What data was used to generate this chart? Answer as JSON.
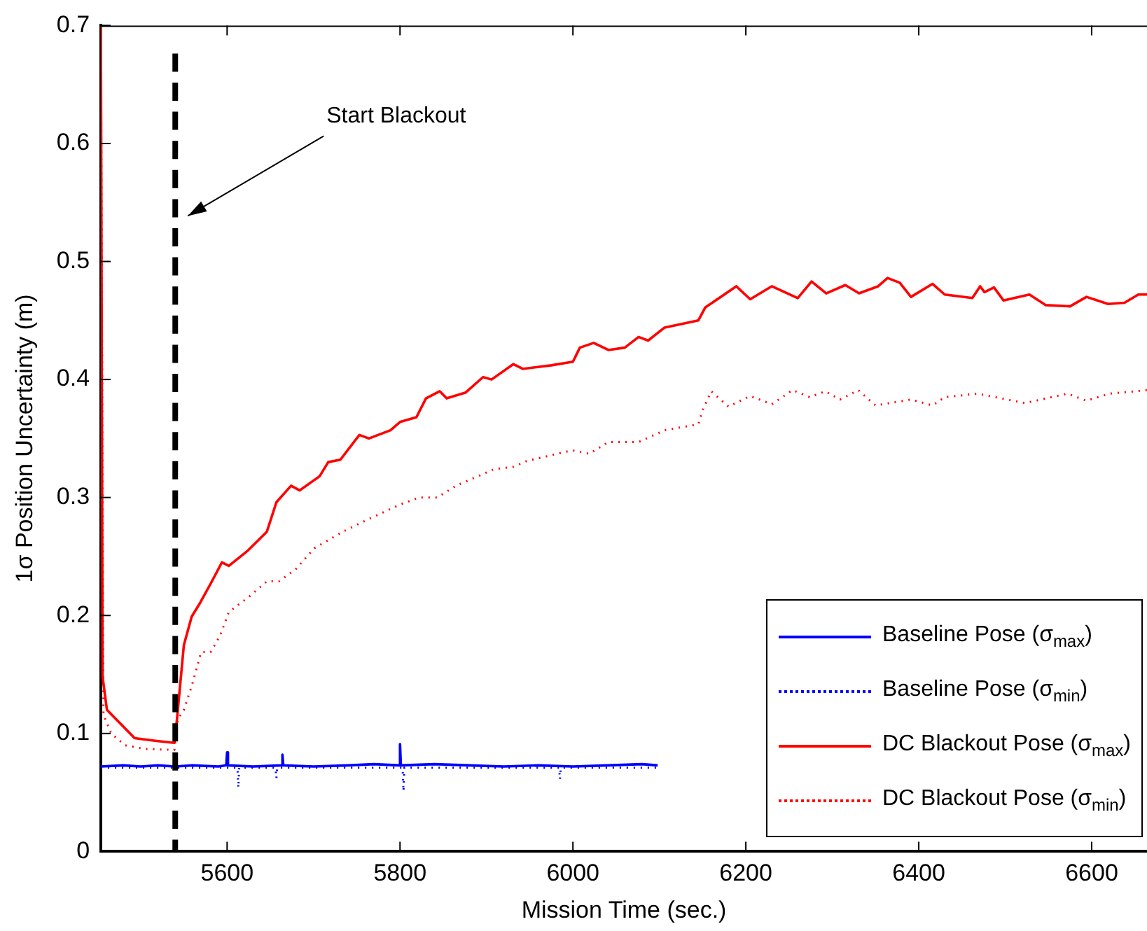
{
  "chart_data": {
    "type": "line",
    "xlabel": "Mission Time (sec.)",
    "ylabel": "1σ Position Uncertainty (m)",
    "xlim": [
      5454,
      6664
    ],
    "xticks": [
      5600,
      5800,
      6000,
      6200,
      6400,
      6600
    ],
    "ylim": [
      0,
      0.7
    ],
    "yticks": [
      0,
      0.1,
      0.2,
      0.3,
      0.4,
      0.5,
      0.6,
      0.7
    ],
    "grid": false,
    "legend": "bottom right",
    "marker": "none",
    "ref_lines": [
      {
        "axis": "x",
        "value": 5540,
        "label": "Start Blackout",
        "color": "#000000",
        "line_style": "dashed"
      }
    ],
    "series": [
      {
        "name": "Baseline Pose (σ$_{max}$)",
        "color": "#0000ff",
        "line_style": "solid",
        "x": [
          5454,
          5480,
          5500,
          5520,
          5540,
          5560,
          5590,
          5599,
          5600,
          5601,
          5630,
          5663,
          5664,
          5665,
          5700,
          5740,
          5770,
          5799,
          5800,
          5801,
          5840,
          5880,
          5920,
          5960,
          6000,
          6040,
          6080,
          6098
        ],
        "values": [
          0.072,
          0.073,
          0.072,
          0.073,
          0.072,
          0.073,
          0.072,
          0.073,
          0.084,
          0.073,
          0.072,
          0.073,
          0.082,
          0.073,
          0.072,
          0.073,
          0.074,
          0.073,
          0.091,
          0.073,
          0.074,
          0.073,
          0.072,
          0.073,
          0.072,
          0.073,
          0.074,
          0.073
        ]
      },
      {
        "name": "Baseline Pose (σ$_{min}$)",
        "color": "#0000ff",
        "line_style": "dotted",
        "x": [
          5454,
          5612,
          5613,
          5614,
          5656,
          5657,
          5658,
          5803,
          5804,
          5805,
          5984,
          5985,
          5986,
          6098
        ],
        "values": [
          0.071,
          0.071,
          0.054,
          0.071,
          0.071,
          0.062,
          0.071,
          0.071,
          0.051,
          0.071,
          0.071,
          0.061,
          0.071,
          0.071
        ]
      },
      {
        "name": "DC Blackout Pose (σ$_{max}$)",
        "color": "#ff0000",
        "line_style": "solid",
        "x": [
          5454,
          5456,
          5461,
          5477,
          5493,
          5515,
          5539,
          5542,
          5550,
          5559,
          5569,
          5581,
          5594,
          5602,
          5624,
          5646,
          5657,
          5674,
          5684,
          5707,
          5717,
          5731,
          5753,
          5764,
          5789,
          5800,
          5819,
          5830,
          5846,
          5854,
          5876,
          5896,
          5906,
          5931,
          5942,
          5975,
          6000,
          6008,
          6024,
          6041,
          6060,
          6076,
          6087,
          6106,
          6145,
          6153,
          6189,
          6205,
          6230,
          6260,
          6276,
          6293,
          6315,
          6331,
          6353,
          6364,
          6378,
          6391,
          6416,
          6430,
          6462,
          6471,
          6476,
          6487,
          6498,
          6528,
          6547,
          6575,
          6594,
          6619,
          6638,
          6654,
          6664
        ],
        "values": [
          0.7,
          0.148,
          0.12,
          0.108,
          0.096,
          0.094,
          0.092,
          0.112,
          0.175,
          0.199,
          0.211,
          0.227,
          0.245,
          0.242,
          0.255,
          0.271,
          0.296,
          0.31,
          0.306,
          0.318,
          0.33,
          0.332,
          0.353,
          0.35,
          0.357,
          0.364,
          0.368,
          0.384,
          0.39,
          0.384,
          0.389,
          0.402,
          0.4,
          0.413,
          0.409,
          0.412,
          0.415,
          0.427,
          0.431,
          0.425,
          0.427,
          0.436,
          0.433,
          0.444,
          0.45,
          0.461,
          0.479,
          0.468,
          0.479,
          0.469,
          0.483,
          0.473,
          0.48,
          0.473,
          0.479,
          0.486,
          0.482,
          0.47,
          0.481,
          0.472,
          0.469,
          0.479,
          0.474,
          0.478,
          0.467,
          0.472,
          0.463,
          0.462,
          0.47,
          0.464,
          0.465,
          0.472,
          0.472
        ]
      },
      {
        "name": "DC Blackout Pose (σ$_{min}$)",
        "color": "#ff0000",
        "line_style": "dotted",
        "x": [
          5454,
          5457,
          5466,
          5482,
          5504,
          5539,
          5543,
          5550,
          5559,
          5570,
          5581,
          5592,
          5602,
          5624,
          5646,
          5660,
          5679,
          5701,
          5734,
          5756,
          5800,
          5822,
          5843,
          5865,
          5909,
          5931,
          5947,
          5999,
          6019,
          6041,
          6076,
          6106,
          6145,
          6150,
          6160,
          6180,
          6205,
          6230,
          6254,
          6274,
          6292,
          6309,
          6330,
          6350,
          6391,
          6416,
          6430,
          6468,
          6523,
          6572,
          6594,
          6621,
          6664
        ],
        "values": [
          0.7,
          0.116,
          0.1,
          0.09,
          0.087,
          0.086,
          0.112,
          0.12,
          0.14,
          0.169,
          0.169,
          0.183,
          0.203,
          0.215,
          0.229,
          0.229,
          0.239,
          0.257,
          0.271,
          0.279,
          0.294,
          0.3,
          0.3,
          0.31,
          0.324,
          0.326,
          0.331,
          0.34,
          0.337,
          0.347,
          0.347,
          0.357,
          0.362,
          0.374,
          0.39,
          0.377,
          0.386,
          0.379,
          0.391,
          0.385,
          0.39,
          0.383,
          0.391,
          0.378,
          0.383,
          0.378,
          0.385,
          0.388,
          0.38,
          0.388,
          0.382,
          0.388,
          0.391
        ]
      }
    ]
  }
}
